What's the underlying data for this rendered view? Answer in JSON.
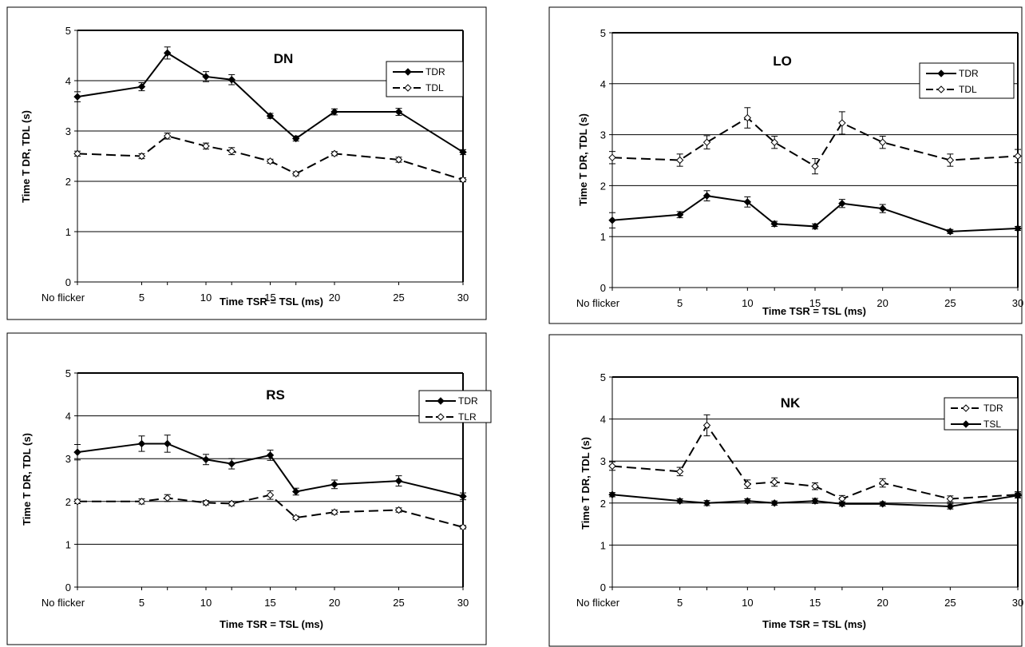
{
  "chart_data": [
    {
      "type": "line",
      "title": "DN",
      "xlabel": "Time TSR = TSL (ms)",
      "ylabel": "Time T DR, TDL (s)",
      "x": [
        0,
        5,
        7,
        10,
        12,
        15,
        17,
        20,
        25,
        30
      ],
      "x_tick_values": [
        0,
        5,
        10,
        15,
        20,
        25,
        30
      ],
      "x_tick_labels": [
        "No flicker",
        "5",
        "10",
        "15",
        "20",
        "25",
        "30"
      ],
      "ylim": [
        0,
        5
      ],
      "y_ticks": [
        0,
        1,
        2,
        3,
        4,
        5
      ],
      "grid": true,
      "legend_position": "top-right",
      "series": [
        {
          "name": "TDR",
          "marker": "filled",
          "dashed": false,
          "values": [
            3.68,
            3.88,
            4.55,
            4.08,
            4.02,
            3.3,
            2.85,
            3.38,
            3.38,
            2.58
          ],
          "errors": [
            0.1,
            0.08,
            0.12,
            0.1,
            0.1,
            0.05,
            0.05,
            0.06,
            0.07,
            0.05
          ]
        },
        {
          "name": "TDL",
          "marker": "open",
          "dashed": true,
          "values": [
            2.55,
            2.5,
            2.9,
            2.7,
            2.6,
            2.4,
            2.15,
            2.55,
            2.43,
            2.03
          ],
          "errors": [
            0.05,
            0.05,
            0.06,
            0.06,
            0.07,
            0.04,
            0.04,
            0.04,
            0.05,
            0.04
          ]
        }
      ]
    },
    {
      "type": "line",
      "title": "LO",
      "xlabel": "Time TSR = TSL (ms)",
      "ylabel": "Time T DR, TDL (s)",
      "x": [
        0,
        5,
        7,
        10,
        12,
        15,
        17,
        20,
        25,
        30
      ],
      "x_tick_values": [
        0,
        5,
        10,
        15,
        20,
        25,
        30
      ],
      "x_tick_labels": [
        "No flicker",
        "5",
        "10",
        "15",
        "20",
        "25",
        "30"
      ],
      "ylim": [
        0,
        5
      ],
      "y_ticks": [
        0,
        1,
        2,
        3,
        4,
        5
      ],
      "grid": true,
      "legend_position": "top-right",
      "series": [
        {
          "name": "TDR",
          "marker": "filled",
          "dashed": false,
          "values": [
            1.32,
            1.43,
            1.8,
            1.68,
            1.25,
            1.2,
            1.65,
            1.55,
            1.1,
            1.16
          ],
          "errors": [
            0.15,
            0.06,
            0.1,
            0.1,
            0.05,
            0.05,
            0.08,
            0.08,
            0.04,
            0.04
          ]
        },
        {
          "name": "TDL",
          "marker": "open",
          "dashed": true,
          "values": [
            2.55,
            2.5,
            2.85,
            3.33,
            2.85,
            2.38,
            3.23,
            2.85,
            2.5,
            2.58
          ],
          "errors": [
            0.12,
            0.12,
            0.13,
            0.2,
            0.12,
            0.15,
            0.22,
            0.12,
            0.12,
            0.13
          ]
        }
      ]
    },
    {
      "type": "line",
      "title": "RS",
      "xlabel": "Time TSR = TSL (ms)",
      "ylabel": "Time T DR, TDL (s)",
      "x": [
        0,
        5,
        7,
        10,
        12,
        15,
        17,
        20,
        25,
        30
      ],
      "x_tick_values": [
        0,
        5,
        10,
        15,
        20,
        25,
        30
      ],
      "x_tick_labels": [
        "No flicker",
        "5",
        "10",
        "15",
        "20",
        "25",
        "30"
      ],
      "ylim": [
        0,
        5
      ],
      "y_ticks": [
        0,
        1,
        2,
        3,
        4,
        5
      ],
      "grid": true,
      "legend_position": "top-right",
      "series": [
        {
          "name": "TDR",
          "marker": "filled",
          "dashed": false,
          "values": [
            3.15,
            3.35,
            3.35,
            2.98,
            2.88,
            3.08,
            2.23,
            2.4,
            2.48,
            2.12
          ],
          "errors": [
            0.18,
            0.18,
            0.2,
            0.12,
            0.12,
            0.12,
            0.08,
            0.1,
            0.12,
            0.08
          ]
        },
        {
          "name": "TLR",
          "marker": "open",
          "dashed": true,
          "values": [
            2.0,
            2.0,
            2.08,
            1.97,
            1.95,
            2.15,
            1.62,
            1.75,
            1.8,
            1.4
          ],
          "errors": [
            0.05,
            0.06,
            0.08,
            0.05,
            0.05,
            0.1,
            0.04,
            0.05,
            0.05,
            0.04
          ]
        }
      ]
    },
    {
      "type": "line",
      "title": "NK",
      "xlabel": "Time TSR = TSL (ms)",
      "ylabel": "Time T DR, TDL (s)",
      "x": [
        0,
        5,
        7,
        10,
        12,
        15,
        17,
        20,
        25,
        30
      ],
      "x_tick_values": [
        0,
        5,
        10,
        15,
        20,
        25,
        30
      ],
      "x_tick_labels": [
        "No flicker",
        "5",
        "10",
        "15",
        "20",
        "25",
        "30"
      ],
      "ylim": [
        0,
        5
      ],
      "y_ticks": [
        0,
        1,
        2,
        3,
        4,
        5
      ],
      "grid": true,
      "legend_position": "top-right",
      "series": [
        {
          "name": "TDR",
          "marker": "open",
          "dashed": true,
          "values": [
            2.88,
            2.75,
            3.85,
            2.45,
            2.5,
            2.4,
            2.1,
            2.48,
            2.1,
            2.2
          ],
          "errors": [
            0.1,
            0.1,
            0.25,
            0.1,
            0.1,
            0.08,
            0.08,
            0.1,
            0.07,
            0.07
          ]
        },
        {
          "name": "TSL",
          "marker": "filled",
          "dashed": false,
          "values": [
            2.2,
            2.05,
            2.0,
            2.05,
            2.0,
            2.05,
            1.98,
            1.98,
            1.92,
            2.18
          ],
          "errors": [
            0.05,
            0.05,
            0.06,
            0.05,
            0.05,
            0.06,
            0.05,
            0.05,
            0.06,
            0.06
          ]
        }
      ]
    }
  ]
}
